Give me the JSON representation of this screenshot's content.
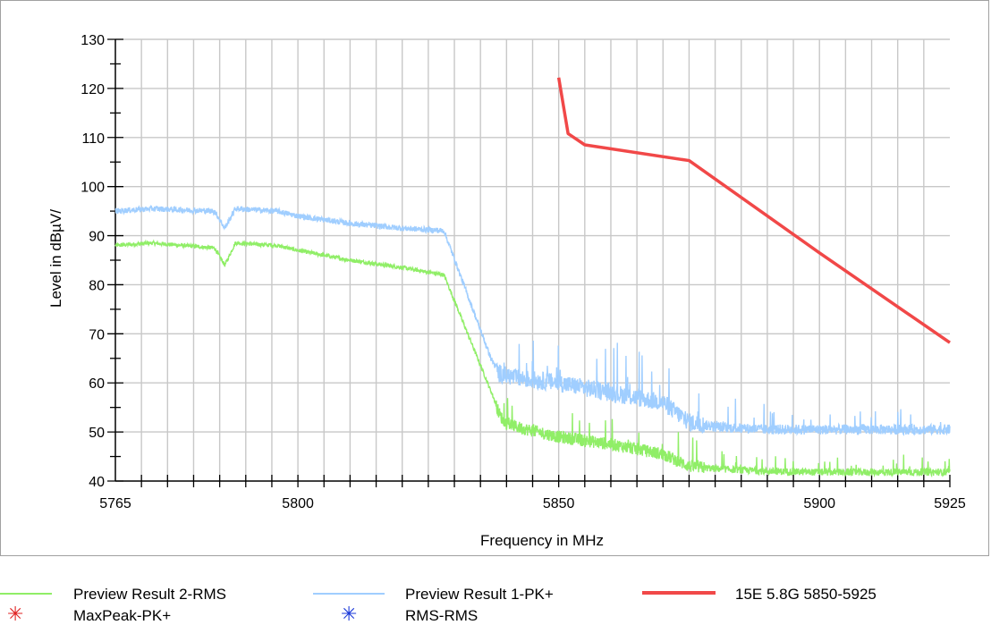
{
  "chart_data": {
    "type": "line",
    "xlabel": "Frequency in MHz",
    "ylabel": "Level in dBµV/",
    "xlim": [
      5765,
      5925
    ],
    "ylim": [
      40,
      130
    ],
    "x_ticks": [
      5765,
      5800,
      5850,
      5900,
      5925
    ],
    "y_ticks": [
      40,
      50,
      60,
      70,
      80,
      90,
      100,
      110,
      120,
      130
    ],
    "grid": true,
    "legend_position": "bottom",
    "series": [
      {
        "name": "Preview Result 2-RMS",
        "color": "#90ee67",
        "x": [
          5765,
          5772,
          5784,
          5786,
          5788,
          5796,
          5800,
          5810,
          5820,
          5828,
          5837.5,
          5838.5,
          5839.5,
          5842,
          5850,
          5860,
          5870,
          5875,
          5880,
          5890,
          5900,
          5910,
          5925
        ],
        "values": [
          88,
          88.5,
          87.5,
          84,
          88.5,
          88,
          87,
          85,
          83.5,
          82,
          57,
          54,
          52,
          51,
          49,
          47.5,
          45.5,
          43,
          42.5,
          42,
          41.8,
          41.8,
          41.8
        ]
      },
      {
        "name": "Preview Result 1-PK+",
        "color": "#a0ceff",
        "x": [
          5765,
          5772,
          5784,
          5786,
          5788,
          5796,
          5800,
          5810,
          5820,
          5828,
          5837,
          5838.5,
          5840,
          5842,
          5850,
          5860,
          5870,
          5875,
          5880,
          5890,
          5900,
          5910,
          5925
        ],
        "values": [
          95,
          95.5,
          95,
          91.5,
          95.5,
          95,
          94,
          92.5,
          91.5,
          91,
          65,
          62,
          61.5,
          61,
          60,
          58,
          56,
          52,
          51,
          50.5,
          50.5,
          50.5,
          50.5
        ]
      },
      {
        "name": "15E 5.8G 5850-5925",
        "color": "#f14848",
        "x": [
          5850,
          5851.8,
          5855,
          5875,
          5900,
          5925
        ],
        "values": [
          122.2,
          110.8,
          108.5,
          105.3,
          86.5,
          68.2
        ]
      }
    ],
    "markers": [
      {
        "name": "MaxPeak-PK+",
        "color": "#e02020"
      },
      {
        "name": "RMS-RMS",
        "color": "#1a38d8"
      }
    ]
  },
  "legend": {
    "marker_symbol": "✳"
  }
}
